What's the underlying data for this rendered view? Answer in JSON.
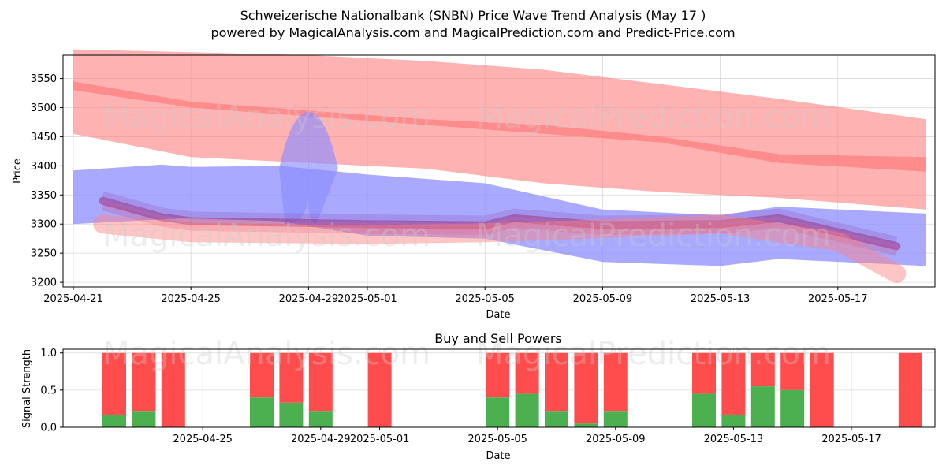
{
  "title": "Schweizerische Nationalbank (SNBN) Price Wave Trend Analysis (May 17 )",
  "subtitle": "powered by MagicalAnalysis.com and MagicalPrediction.com and Predict-Price.com",
  "watermarks": [
    "MagicalAnalysis.com",
    "MagicalPrediction.com"
  ],
  "colors": {
    "bull": "#ff7f7f",
    "bear": "#8c8cff",
    "buy": "#4caf50",
    "sell": "#ff4d4d",
    "grid": "#d9d9d9"
  },
  "chart_data": [
    {
      "type": "area",
      "xlabel": "Date",
      "ylabel": "Price",
      "grid": true,
      "ylim": [
        3192,
        3590
      ],
      "x_tick_labels": [
        "2025-04-21",
        "2025-04-25",
        "2025-04-29",
        "2025-05-01",
        "2025-05-05",
        "2025-05-09",
        "2025-05-13",
        "2025-05-17"
      ],
      "y_ticks": [
        3200,
        3250,
        3300,
        3350,
        3400,
        3450,
        3500,
        3550
      ],
      "series": [
        {
          "color": "red",
          "style": "upper wide band",
          "x": [
            "2025-04-21",
            "2025-04-25",
            "2025-04-29",
            "2025-05-03",
            "2025-05-07",
            "2025-05-11",
            "2025-05-15",
            "2025-05-20"
          ],
          "upper": [
            3600,
            3595,
            3590,
            3580,
            3565,
            3540,
            3515,
            3480
          ],
          "lower": [
            3455,
            3415,
            3405,
            3395,
            3370,
            3355,
            3345,
            3325
          ]
        },
        {
          "color": "red",
          "style": "upper thin line",
          "x": [
            "2025-04-21",
            "2025-04-25",
            "2025-04-29",
            "2025-05-03",
            "2025-05-07",
            "2025-05-11",
            "2025-05-15",
            "2025-05-20"
          ],
          "upper": [
            3545,
            3510,
            3495,
            3480,
            3470,
            3450,
            3420,
            3415
          ],
          "lower": [
            3530,
            3500,
            3485,
            3470,
            3455,
            3440,
            3405,
            3390
          ]
        },
        {
          "color": "blue",
          "style": "wide band",
          "x": [
            "2025-04-21",
            "2025-04-24",
            "2025-04-25",
            "2025-04-28",
            "2025-05-01",
            "2025-05-05",
            "2025-05-09",
            "2025-05-13",
            "2025-05-15",
            "2025-05-20"
          ],
          "upper": [
            3392,
            3402,
            3398,
            3400,
            3385,
            3370,
            3325,
            3315,
            3330,
            3318
          ],
          "lower": [
            3300,
            3308,
            3310,
            3305,
            3280,
            3275,
            3235,
            3228,
            3240,
            3228
          ]
        },
        {
          "color": "blue",
          "style": "spike",
          "x": [
            "2025-04-28",
            "2025-04-29",
            "2025-04-30"
          ],
          "peak": 3512
        },
        {
          "color": "purple",
          "style": "trend line",
          "x": [
            "2025-04-22",
            "2025-04-24",
            "2025-04-25",
            "2025-05-01",
            "2025-05-05",
            "2025-05-06",
            "2025-05-09",
            "2025-05-13",
            "2025-05-15",
            "2025-05-19"
          ],
          "y": [
            3340,
            3312,
            3305,
            3300,
            3298,
            3310,
            3298,
            3300,
            3310,
            3262
          ]
        },
        {
          "color": "red",
          "style": "low band",
          "x": [
            "2025-04-22",
            "2025-04-25",
            "2025-05-01",
            "2025-05-05",
            "2025-05-09",
            "2025-05-13",
            "2025-05-17",
            "2025-05-19"
          ],
          "y": [
            3300,
            3285,
            3282,
            3285,
            3292,
            3300,
            3270,
            3215
          ]
        }
      ]
    },
    {
      "type": "bar",
      "title": "Buy and Sell Powers",
      "xlabel": "Date",
      "ylabel": "Signal Strength",
      "ylim": [
        0,
        1.05
      ],
      "y_ticks": [
        "0.0",
        "0.5",
        "1.0"
      ],
      "x_tick_labels": [
        "2025-04-25",
        "2025-04-29",
        "2025-05-01",
        "2025-05-05",
        "2025-05-09",
        "2025-05-13",
        "2025-05-17"
      ],
      "categories": [
        "2025-04-22",
        "2025-04-23",
        "2025-04-24",
        "2025-04-27",
        "2025-04-28",
        "2025-04-29",
        "2025-05-01",
        "2025-05-05",
        "2025-05-06",
        "2025-05-07",
        "2025-05-08",
        "2025-05-09",
        "2025-05-12",
        "2025-05-13",
        "2025-05-14",
        "2025-05-15",
        "2025-05-16",
        "2025-05-19"
      ],
      "buy": [
        0.17,
        0.22,
        0.0,
        0.4,
        0.33,
        0.22,
        0.0,
        0.4,
        0.45,
        0.22,
        0.05,
        0.22,
        0.45,
        0.17,
        0.55,
        0.5,
        0.0,
        0.0
      ],
      "sell_total": 1.0
    }
  ]
}
